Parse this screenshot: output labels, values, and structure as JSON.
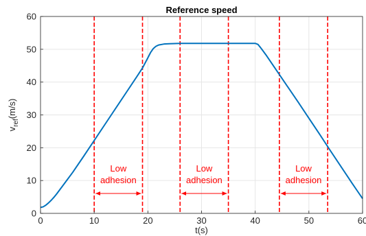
{
  "chart_data": {
    "type": "line",
    "title": "Reference speed",
    "xlabel": "t(s)",
    "ylabel_main": "v",
    "ylabel_sub": "ref",
    "ylabel_unit": "(m/s)",
    "xlim": [
      0,
      60
    ],
    "ylim": [
      0,
      60
    ],
    "xticks": [
      0,
      10,
      20,
      30,
      40,
      50,
      60
    ],
    "yticks": [
      0,
      10,
      20,
      30,
      40,
      50,
      60
    ],
    "xtick_labels": [
      "0",
      "10",
      "20",
      "30",
      "40",
      "50",
      "60"
    ],
    "ytick_labels": [
      "0",
      "10",
      "20",
      "30",
      "40",
      "50",
      "60"
    ],
    "grid": true,
    "series": [
      {
        "color": "#0072bd",
        "x": [
          0,
          0.5,
          1,
          1.5,
          2,
          2.5,
          3,
          4,
          6,
          8,
          10,
          12,
          14,
          16,
          18,
          19,
          20,
          20.5,
          21,
          21.5,
          22,
          23,
          24,
          26,
          30,
          35,
          39,
          40,
          40.5,
          41,
          42,
          44,
          46,
          48,
          50,
          52,
          54,
          56,
          58,
          59,
          60
        ],
        "y": [
          1.8,
          2.0,
          2.5,
          3.2,
          4.0,
          4.9,
          5.9,
          8.1,
          12.5,
          17.3,
          22.2,
          27.1,
          32.0,
          36.9,
          41.8,
          44.3,
          47.4,
          49.0,
          50.2,
          50.9,
          51.3,
          51.6,
          51.7,
          51.8,
          51.8,
          51.8,
          51.8,
          51.8,
          51.5,
          50.5,
          48.3,
          43.5,
          38.7,
          33.9,
          29.0,
          24.1,
          19.1,
          14.2,
          9.3,
          6.9,
          4.5
        ]
      }
    ],
    "vlines": {
      "color": "#ff0000",
      "x": [
        10,
        19,
        26,
        35,
        44.5,
        53.5
      ]
    },
    "annotations": [
      {
        "line1": "Low",
        "line2": "adhesion",
        "x_start": 10,
        "x_end": 19
      },
      {
        "line1": "Low",
        "line2": "adhesion",
        "x_start": 26,
        "x_end": 35
      },
      {
        "line1": "Low",
        "line2": "adhesion",
        "x_start": 44.5,
        "x_end": 53.5
      }
    ]
  }
}
